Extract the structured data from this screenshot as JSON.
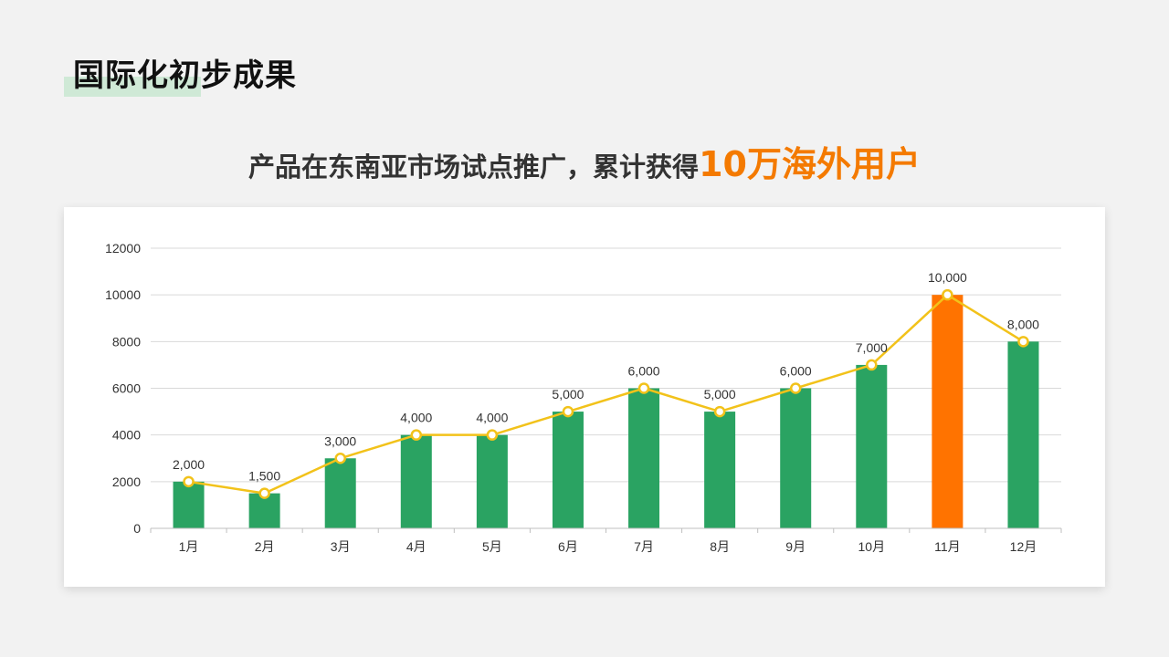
{
  "page": {
    "title": "国际化初步成果",
    "subtitle_main": "产品在东南亚市场试点推广，累计获得",
    "subtitle_highlight": "10万海外用户"
  },
  "colors": {
    "bar": "#2aa362",
    "bar_highlight": "#ff7300",
    "line": "#f2c21a",
    "marker_fill": "#ffffff",
    "title_accent": "#cfe9d6",
    "highlight_text": "#f47a00"
  },
  "chart_data": {
    "type": "bar",
    "categories": [
      "1月",
      "2月",
      "3月",
      "4月",
      "5月",
      "6月",
      "7月",
      "8月",
      "9月",
      "10月",
      "11月",
      "12月"
    ],
    "series": [
      {
        "type": "bar",
        "values": [
          2000,
          1500,
          3000,
          4000,
          4000,
          5000,
          6000,
          5000,
          6000,
          7000,
          10000,
          8000
        ],
        "highlight_index": 10
      },
      {
        "type": "line",
        "values": [
          2000,
          1500,
          3000,
          4000,
          4000,
          5000,
          6000,
          5000,
          6000,
          7000,
          10000,
          8000
        ]
      }
    ],
    "data_labels": [
      "2,000",
      "1,500",
      "3,000",
      "4,000",
      "4,000",
      "5,000",
      "6,000",
      "5,000",
      "6,000",
      "7,000",
      "10,000",
      "8,000"
    ],
    "yticks": [
      "0",
      "2000",
      "4000",
      "6000",
      "8000",
      "10000",
      "12000"
    ],
    "ylim": [
      0,
      12000
    ],
    "grid": true,
    "legend": "none"
  }
}
